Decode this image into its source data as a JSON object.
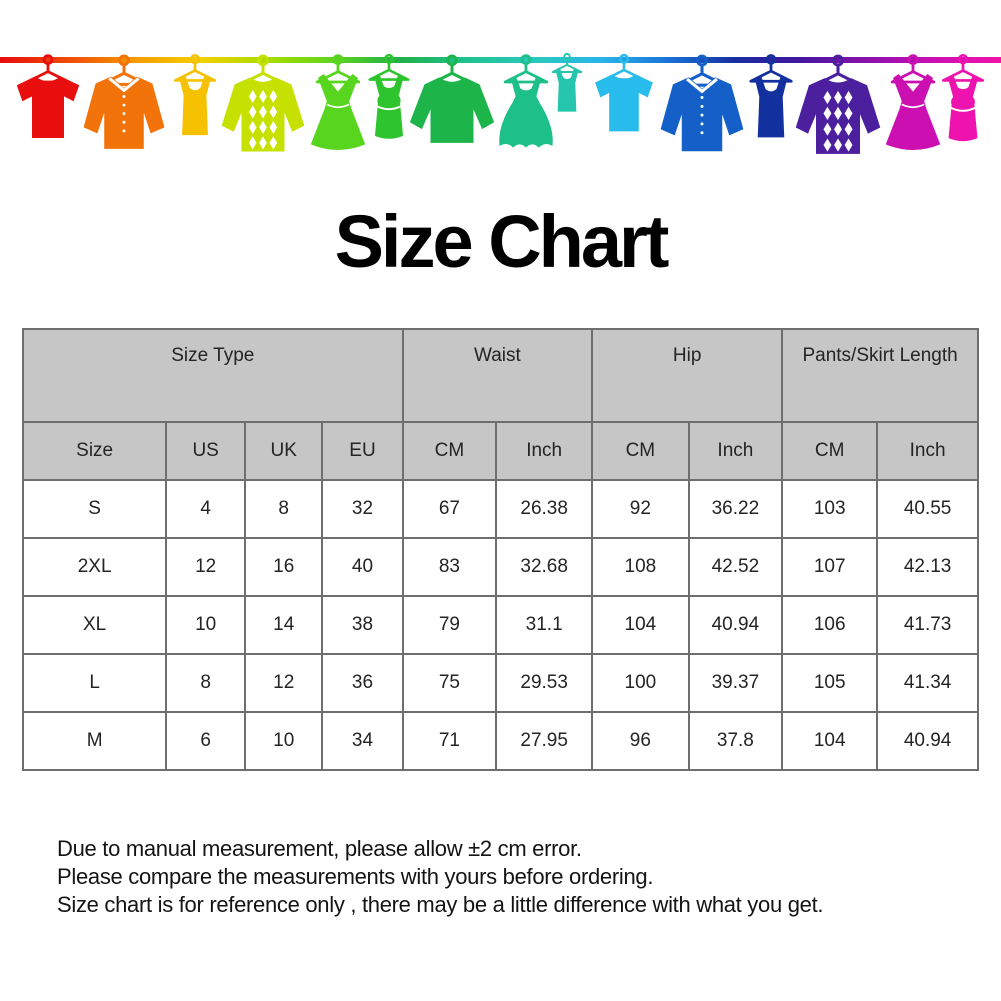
{
  "title": "Size Chart",
  "banner": {
    "line_gradient": [
      "#e60c0c",
      "#ef4a08",
      "#f59a00",
      "#f3d000",
      "#aadc00",
      "#5fd41e",
      "#20b04c",
      "#1fc290",
      "#28c9bc",
      "#29b5ea",
      "#1a73d8",
      "#16309e",
      "#45169e",
      "#8c12ac",
      "#cc0fb2",
      "#f013a8"
    ],
    "items": [
      {
        "icon": "t-shirt-icon",
        "color": "#e90e0e"
      },
      {
        "icon": "shirt-icon",
        "color": "#f2730a"
      },
      {
        "icon": "tank-top-icon",
        "color": "#f6c100"
      },
      {
        "icon": "argyle-sweater-icon",
        "color": "#c6e000"
      },
      {
        "icon": "dress-icon",
        "color": "#58d51e"
      },
      {
        "icon": "tank-dress-icon",
        "color": "#2ec42e"
      },
      {
        "icon": "long-sleeve-top-icon",
        "color": "#1db54a"
      },
      {
        "icon": "flared-dress-icon",
        "color": "#1ec08a"
      },
      {
        "icon": "camisole-icon",
        "color": "#26c5ae"
      },
      {
        "icon": "t-shirt-icon",
        "color": "#28bcec"
      },
      {
        "icon": "shirt-icon",
        "color": "#1560c8"
      },
      {
        "icon": "tank-top-icon",
        "color": "#13309f"
      },
      {
        "icon": "argyle-sweater-icon",
        "color": "#4b1f9e"
      },
      {
        "icon": "dress-icon",
        "color": "#cc0fb0"
      },
      {
        "icon": "tank-dress-icon",
        "color": "#ee13ae"
      }
    ]
  },
  "table": {
    "header_bg": "#c6c6c6",
    "border_color": "#6e6e6e",
    "group_headers": [
      {
        "label": "Size Type",
        "colspan": 4
      },
      {
        "label": "Waist",
        "colspan": 2
      },
      {
        "label": "Hip",
        "colspan": 2
      },
      {
        "label": "Pants/Skirt Length",
        "colspan": 2
      }
    ],
    "column_headers": [
      "Size",
      "US",
      "UK",
      "EU",
      "CM",
      "Inch",
      "CM",
      "Inch",
      "CM",
      "Inch"
    ],
    "rows": [
      [
        "S",
        "4",
        "8",
        "32",
        "67",
        "26.38",
        "92",
        "36.22",
        "103",
        "40.55"
      ],
      [
        "2XL",
        "12",
        "16",
        "40",
        "83",
        "32.68",
        "108",
        "42.52",
        "107",
        "42.13"
      ],
      [
        "XL",
        "10",
        "14",
        "38",
        "79",
        "31.1",
        "104",
        "40.94",
        "106",
        "41.73"
      ],
      [
        "L",
        "8",
        "12",
        "36",
        "75",
        "29.53",
        "100",
        "39.37",
        "105",
        "41.34"
      ],
      [
        "M",
        "6",
        "10",
        "34",
        "71",
        "27.95",
        "96",
        "37.8",
        "104",
        "40.94"
      ]
    ]
  },
  "notes": {
    "lines": [
      "Due to manual measurement, please allow ±2 cm error.",
      "Please compare the measurements with yours before ordering.",
      "Size chart is for reference only , there may be a little difference with what you get."
    ]
  }
}
